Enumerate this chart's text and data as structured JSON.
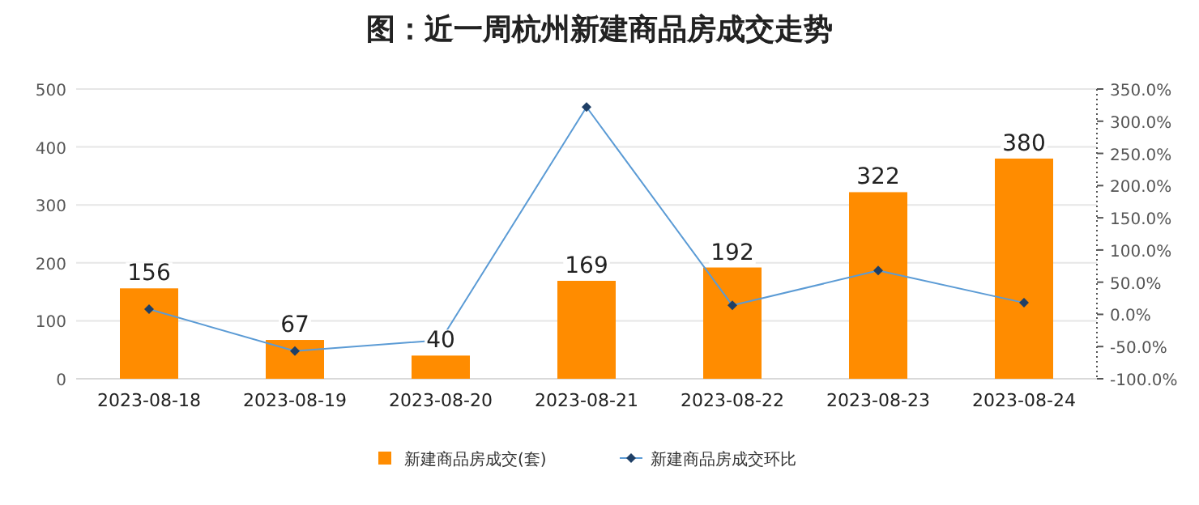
{
  "chart_data": {
    "type": "bar",
    "title": "图：近一周杭州新建商品房成交走势",
    "categories": [
      "2023-08-18",
      "2023-08-19",
      "2023-08-20",
      "2023-08-21",
      "2023-08-22",
      "2023-08-23",
      "2023-08-24"
    ],
    "series": [
      {
        "name": "新建商品房成交(套)",
        "type": "bar",
        "color": "#ff8c00",
        "values": [
          156,
          67,
          40,
          169,
          192,
          322,
          380
        ],
        "value_labels": [
          "156",
          "67",
          "40",
          "169",
          "192",
          "322",
          "380"
        ]
      },
      {
        "name": "新建商品房成交环比",
        "type": "line",
        "axis": "y2",
        "color": "#5b9bd5",
        "marker": "diamond",
        "values": [
          8,
          -57,
          -40,
          322,
          14,
          68,
          18
        ]
      }
    ],
    "ylim": [
      0,
      500
    ],
    "yticks": [
      0,
      100,
      200,
      300,
      400,
      500
    ],
    "y2lim": [
      -100,
      350
    ],
    "y2ticks": [
      {
        "value": -100,
        "label": "-100.0%"
      },
      {
        "value": -50,
        "label": "-50.0%"
      },
      {
        "value": 0,
        "label": "0.0%"
      },
      {
        "value": 50,
        "label": "50.0%"
      },
      {
        "value": 100,
        "label": "100.0%"
      },
      {
        "value": 150,
        "label": "150.0%"
      },
      {
        "value": 200,
        "label": "200.0%"
      },
      {
        "value": 250,
        "label": "250.0%"
      },
      {
        "value": 300,
        "label": "300.0%"
      },
      {
        "value": 350,
        "label": "350.0%"
      }
    ],
    "grid": "y",
    "legend": "bottom"
  }
}
